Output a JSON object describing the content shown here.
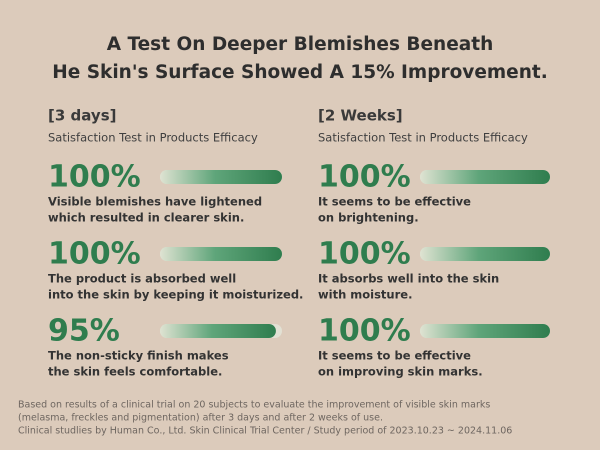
{
  "header": {
    "title_lines": [
      "A Test On Deeper Blemishes Beneath",
      "He Skin's Surface Showed A 15% Improvement."
    ]
  },
  "columns": [
    {
      "period": "[3 days]",
      "subtitle": "Satisfaction Test in Products Efficacy",
      "items": [
        {
          "value": 100,
          "value_label": "100%",
          "lines": [
            "Visible blemishes have lightened",
            "which resulted in clearer skin."
          ]
        },
        {
          "value": 100,
          "value_label": "100%",
          "lines": [
            "The product is absorbed well",
            "into the skin by keeping it moisturized."
          ]
        },
        {
          "value": 95,
          "value_label": "95%",
          "lines": [
            "The non-sticky finish makes",
            "the skin feels comfortable."
          ]
        }
      ]
    },
    {
      "period": "[2 Weeks]",
      "subtitle": "Satisfaction Test in Products Efficacy",
      "items": [
        {
          "value": 100,
          "value_label": "100%",
          "lines": [
            "It seems to be effective",
            "on brightening."
          ]
        },
        {
          "value": 100,
          "value_label": "100%",
          "lines": [
            "It absorbs well into the skin",
            "with moisture."
          ]
        },
        {
          "value": 100,
          "value_label": "100%",
          "lines": [
            "It seems to be effective",
            "on improving skin marks."
          ]
        }
      ]
    }
  ],
  "footnote": [
    "Based on results of a clinical trial on 20 subjects to evaluate the improvement of visible skin marks",
    "(melasma, freckles and pigmentation) after 3 days and after 2 weeks of use.",
    "Clinical studlies by Human Co., Ltd. Skin Clinical Trial Center / Study period of 2023.10.23 ~ 2024.11.06"
  ]
}
